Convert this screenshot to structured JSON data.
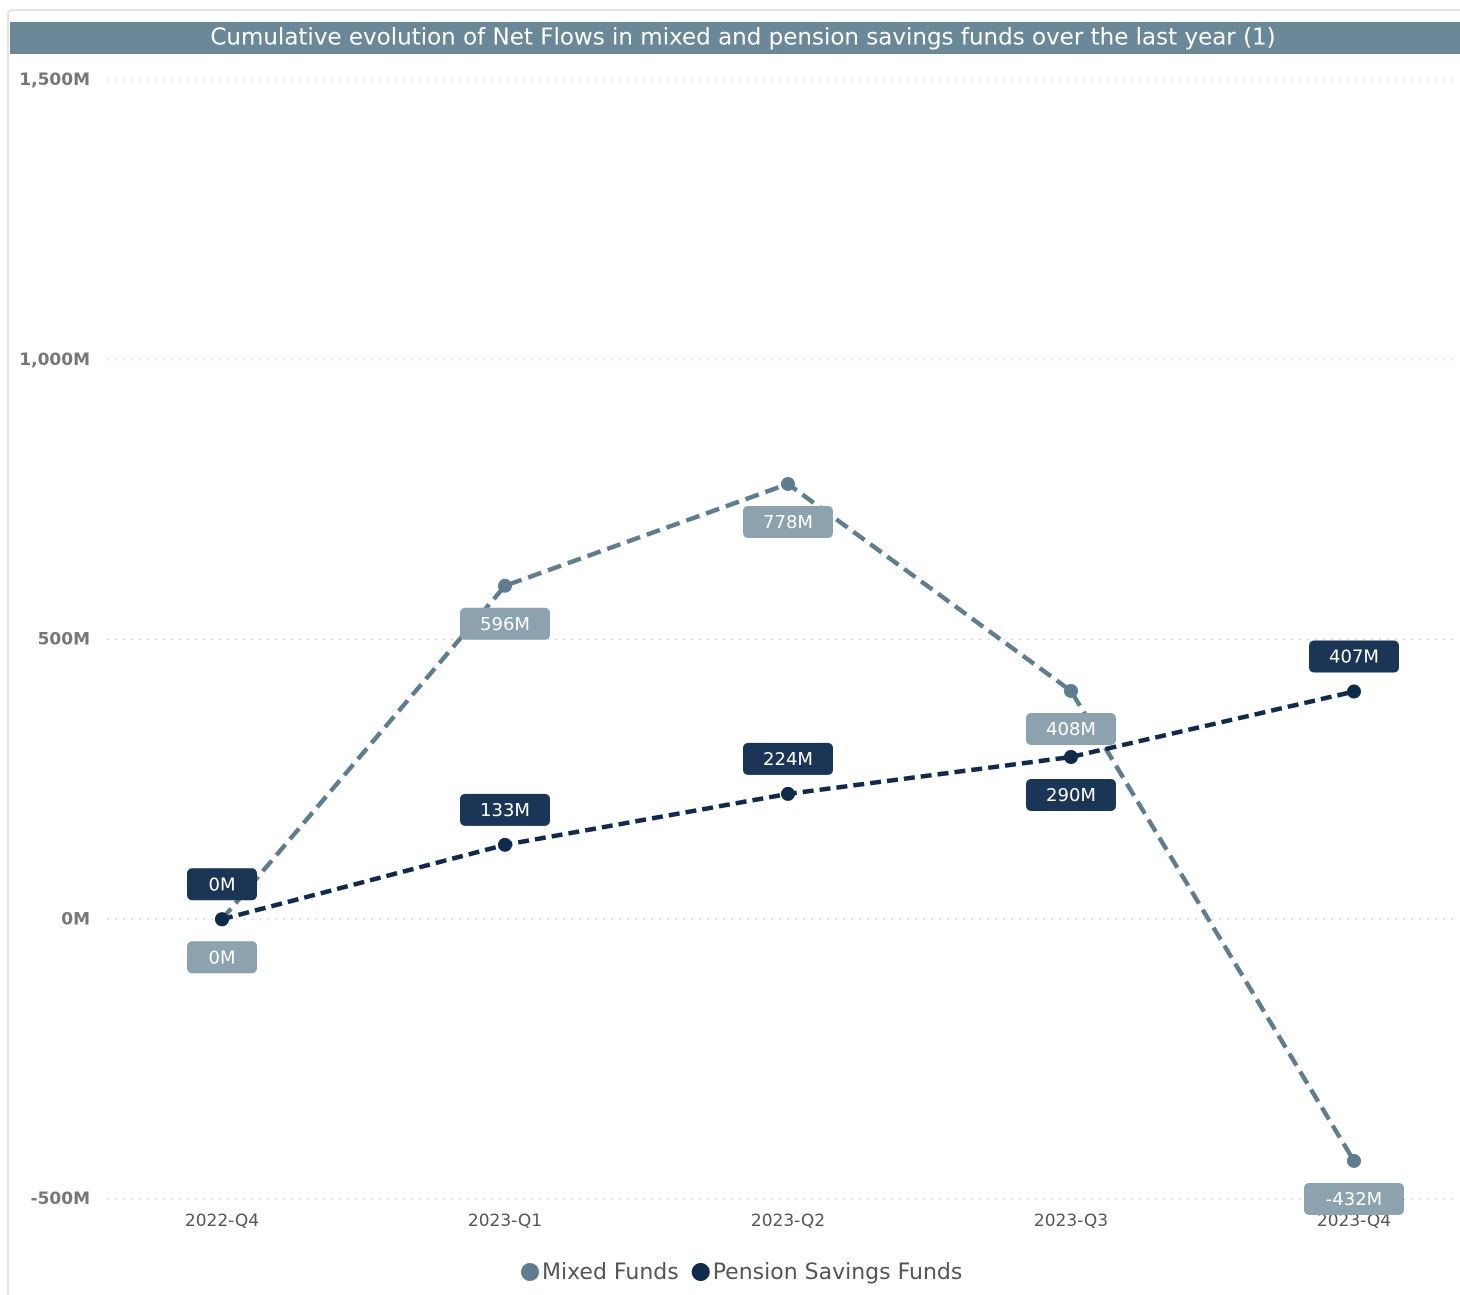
{
  "chart_data": {
    "type": "line",
    "title": "Cumulative evolution of Net Flows in mixed and pension savings funds over the last year (1)",
    "categories": [
      "2022-Q4",
      "2023-Q1",
      "2023-Q2",
      "2023-Q3",
      "2023-Q4"
    ],
    "series": [
      {
        "name": "Mixed Funds",
        "color": "#5f7d8f",
        "values": [
          0,
          596,
          778,
          408,
          -432
        ],
        "value_labels": [
          "0M",
          "596M",
          "778M",
          "408M",
          "-432M"
        ]
      },
      {
        "name": "Pension Savings Funds",
        "color": "#0f2a4a",
        "values": [
          0,
          133,
          224,
          290,
          407
        ],
        "value_labels": [
          "0M",
          "133M",
          "224M",
          "290M",
          "407M"
        ]
      }
    ],
    "ylim": [
      -500,
      1500
    ],
    "yticks": [
      {
        "value": -500,
        "label": "-500M"
      },
      {
        "value": 0,
        "label": "0M"
      },
      {
        "value": 500,
        "label": "500M"
      },
      {
        "value": 1000,
        "label": "1,000M"
      },
      {
        "value": 1500,
        "label": "1,500M"
      }
    ],
    "grid": true
  }
}
